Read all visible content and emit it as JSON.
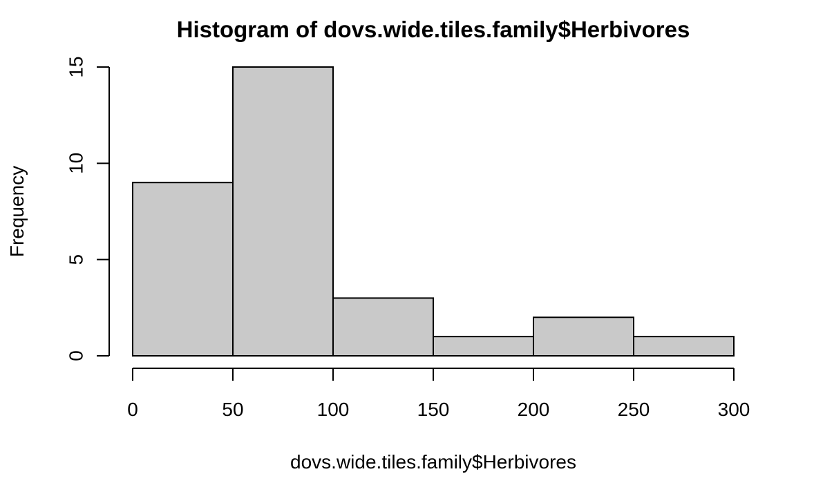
{
  "chart_data": {
    "type": "bar",
    "title": "Histogram of dovs.wide.tiles.family$Herbivores",
    "xlabel": "dovs.wide.tiles.family$Herbivores",
    "ylabel": "Frequency",
    "bins": [
      {
        "start": 0,
        "end": 50,
        "count": 9
      },
      {
        "start": 50,
        "end": 100,
        "count": 15
      },
      {
        "start": 100,
        "end": 150,
        "count": 3
      },
      {
        "start": 150,
        "end": 200,
        "count": 1
      },
      {
        "start": 200,
        "end": 250,
        "count": 2
      },
      {
        "start": 250,
        "end": 300,
        "count": 1
      }
    ],
    "xlim": [
      0,
      300
    ],
    "ylim": [
      0,
      15
    ],
    "x_ticks": [
      0,
      50,
      100,
      150,
      200,
      250,
      300
    ],
    "y_ticks": [
      0,
      5,
      10,
      15
    ],
    "bar_color": "#c9c9c9",
    "grid": false,
    "legend": false
  }
}
